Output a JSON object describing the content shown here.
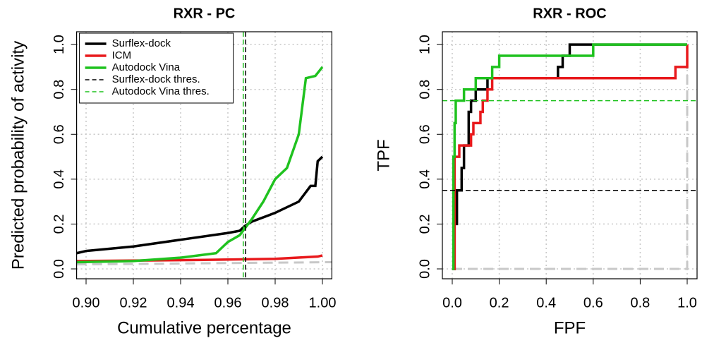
{
  "chart_data": [
    {
      "type": "line",
      "title": "RXR - PC",
      "x_label": "Cumulative percentage",
      "y_label": "Predicted probability of activity",
      "xlim": [
        0.896,
        1.004
      ],
      "ylim": [
        -0.044,
        1.057
      ],
      "grid": true,
      "legend": "top-left",
      "step": false,
      "xticks": [
        {
          "value": 0.9,
          "label": "0.90"
        },
        {
          "value": 0.92,
          "label": "0.92"
        },
        {
          "value": 0.94,
          "label": "0.94"
        },
        {
          "value": 0.96,
          "label": "0.96"
        },
        {
          "value": 0.98,
          "label": "0.98"
        },
        {
          "value": 1.0,
          "label": "1.00"
        }
      ],
      "yticks": [
        {
          "value": 0,
          "label": "0.0"
        },
        {
          "value": 0.2,
          "label": "0.2"
        },
        {
          "value": 0.4,
          "label": "0.4"
        },
        {
          "value": 0.6,
          "label": "0.6"
        },
        {
          "value": 0.8,
          "label": "0.8"
        },
        {
          "value": 1,
          "label": "1.0"
        }
      ],
      "series": [
        {
          "color": "#c8c8c8",
          "dash": true,
          "x": [
            0.896,
            1.004
          ],
          "values": [
            0.02,
            0.03
          ]
        },
        {
          "name": "Surflex-dock",
          "color": "#000000",
          "x": [
            0.896,
            0.9,
            0.92,
            0.94,
            0.96,
            0.965,
            0.967,
            0.97,
            0.98,
            0.99,
            0.995,
            0.997,
            0.998,
            1.0
          ],
          "values": [
            0.07,
            0.08,
            0.1,
            0.13,
            0.16,
            0.17,
            0.19,
            0.21,
            0.25,
            0.3,
            0.37,
            0.37,
            0.48,
            0.5
          ]
        },
        {
          "name": "ICM",
          "color": "#e8191c",
          "x": [
            0.896,
            0.95,
            0.98,
            0.998,
            1.0
          ],
          "values": [
            0.035,
            0.04,
            0.045,
            0.055,
            0.06
          ]
        },
        {
          "name": "Autodock Vina",
          "color": "#1fc21f",
          "x": [
            0.896,
            0.92,
            0.94,
            0.955,
            0.96,
            0.965,
            0.97,
            0.975,
            0.98,
            0.985,
            0.99,
            0.993,
            0.997,
            1.0
          ],
          "values": [
            0.03,
            0.035,
            0.05,
            0.07,
            0.12,
            0.15,
            0.22,
            0.3,
            0.4,
            0.45,
            0.6,
            0.85,
            0.86,
            0.9
          ]
        }
      ],
      "ref_lines": [
        {
          "name": "Surflex-dock thres.",
          "color": "#000000",
          "x": 0.9675
        },
        {
          "name": "Autodock Vina thres.",
          "color": "#1fc21f",
          "x": 0.9665
        }
      ]
    },
    {
      "type": "line",
      "title": "RXR - ROC",
      "x_label": "FPF",
      "y_label": "TPF",
      "xlim": [
        -0.042,
        1.042
      ],
      "ylim": [
        -0.044,
        1.057
      ],
      "grid": true,
      "step": true,
      "xticks": [
        {
          "value": 0,
          "label": "0.0"
        },
        {
          "value": 0.2,
          "label": "0.2"
        },
        {
          "value": 0.4,
          "label": "0.4"
        },
        {
          "value": 0.6,
          "label": "0.6"
        },
        {
          "value": 0.8,
          "label": "0.8"
        },
        {
          "value": 1,
          "label": "1.0"
        }
      ],
      "yticks": [
        {
          "value": 0,
          "label": "0.0"
        },
        {
          "value": 0.2,
          "label": "0.2"
        },
        {
          "value": 0.4,
          "label": "0.4"
        },
        {
          "value": 0.6,
          "label": "0.6"
        },
        {
          "value": 0.8,
          "label": "0.8"
        },
        {
          "value": 1,
          "label": "1.0"
        }
      ],
      "series": [
        {
          "color": "#c8c8c8",
          "dash": true,
          "x": [
            0,
            1
          ],
          "values": [
            0,
            1
          ]
        },
        {
          "color": "#000000",
          "x": [
            0,
            0.01,
            0.02,
            0.04,
            0.05,
            0.07,
            0.08,
            0.1,
            0.15,
            0.45,
            0.47,
            0.5,
            1.0
          ],
          "values": [
            0,
            0.2,
            0.35,
            0.45,
            0.55,
            0.7,
            0.75,
            0.8,
            0.85,
            0.9,
            0.95,
            1.0,
            1.0
          ]
        },
        {
          "color": "#e8191c",
          "x": [
            0,
            0.01,
            0.03,
            0.08,
            0.09,
            0.12,
            0.13,
            0.15,
            0.17,
            0.95,
            0.99,
            1.0
          ],
          "values": [
            0,
            0.5,
            0.55,
            0.6,
            0.65,
            0.7,
            0.75,
            0.8,
            0.85,
            0.9,
            0.9,
            1.0
          ]
        },
        {
          "color": "#1fc21f",
          "x": [
            0,
            0.005,
            0.01,
            0.015,
            0.05,
            0.1,
            0.17,
            0.2,
            0.6,
            1.0
          ],
          "values": [
            0,
            0.5,
            0.65,
            0.75,
            0.8,
            0.85,
            0.9,
            0.95,
            1.0,
            1.0
          ]
        }
      ],
      "ref_lines": [
        {
          "color": "#000000",
          "y": 0.35
        },
        {
          "color": "#1fc21f",
          "y": 0.75
        }
      ]
    }
  ]
}
